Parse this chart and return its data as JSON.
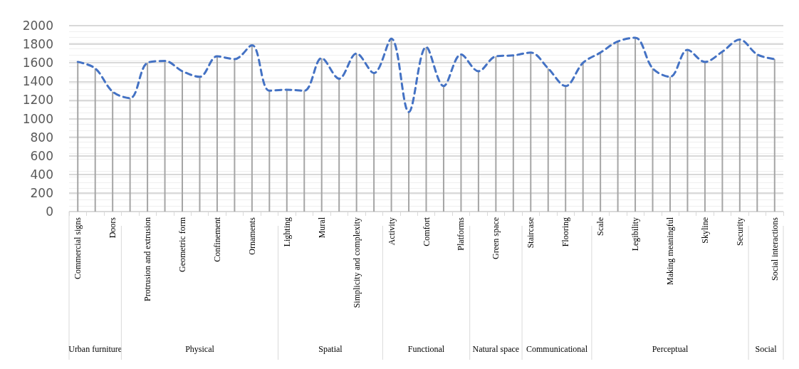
{
  "chart_data": {
    "type": "bar",
    "categories": [
      "Commercial signs",
      null,
      "Doors",
      null,
      "Protrusion and extrusion",
      null,
      "Geometric form",
      null,
      "Confinement",
      null,
      "Ornaments",
      null,
      "Lighting",
      null,
      "Mural",
      null,
      "Simplicity and complexity",
      null,
      "Activity",
      null,
      "Comfort",
      null,
      "Platforms",
      null,
      "Green space",
      null,
      "Staircase",
      null,
      "Flooring",
      null,
      "Scale",
      null,
      "Legibility",
      null,
      "Making meaningful",
      null,
      "Skyline",
      null,
      "Security",
      null,
      "Social interactions"
    ],
    "series": [
      {
        "color": "#a5a5a5",
        "values": [
          1610,
          1540,
          1290,
          1220,
          1600,
          1620,
          1510,
          1450,
          1670,
          1640,
          1790,
          1300,
          1310,
          1300,
          1650,
          1430,
          1700,
          1490,
          1860,
          1070,
          1770,
          1350,
          1690,
          1510,
          1670,
          1680,
          1710,
          1540,
          1350,
          1600,
          1710,
          1830,
          1870,
          1540,
          1450,
          1740,
          1610,
          1720,
          1850,
          1690,
          1640
        ]
      },
      {
        "type": "line",
        "color": "#4472c4",
        "values": [
          1610,
          1540,
          1290,
          1220,
          1600,
          1620,
          1510,
          1450,
          1670,
          1640,
          1790,
          1300,
          1310,
          1300,
          1650,
          1430,
          1700,
          1490,
          1860,
          1070,
          1770,
          1350,
          1690,
          1510,
          1670,
          1680,
          1710,
          1540,
          1350,
          1600,
          1710,
          1830,
          1870,
          1540,
          1450,
          1740,
          1610,
          1720,
          1850,
          1690,
          1640
        ]
      }
    ],
    "ylim": [
      0,
      2000
    ],
    "yticks": [
      0,
      200,
      400,
      600,
      800,
      1000,
      1200,
      1400,
      1600,
      1800,
      2000
    ],
    "grid": "y",
    "line_style": "dashed",
    "marker": "none",
    "annotations": [
      "Urban furniture",
      "Physical",
      "Spatial",
      "Functional",
      "Natural space",
      "Communicational",
      "Perceptual",
      "Social"
    ]
  }
}
